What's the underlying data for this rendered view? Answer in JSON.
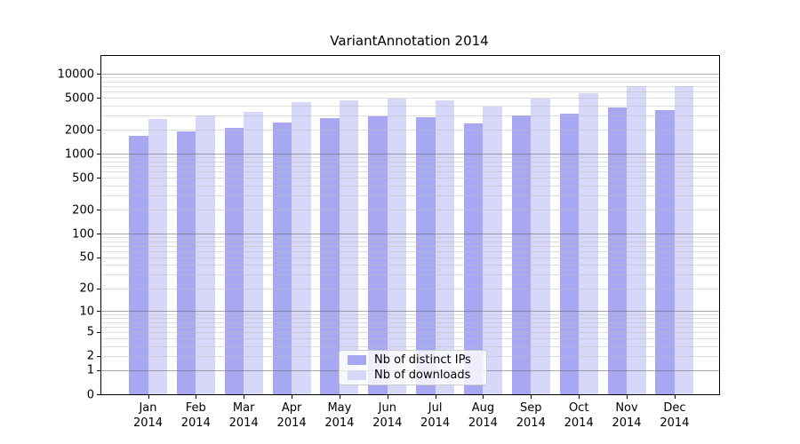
{
  "title": "VariantAnnotation 2014",
  "legend": {
    "items": [
      {
        "label": "Nb of distinct IPs",
        "color": "#a8a8f2"
      },
      {
        "label": "Nb of downloads",
        "color": "#d7d7f9"
      }
    ]
  },
  "chart_data": {
    "type": "bar",
    "title": "VariantAnnotation 2014",
    "categories": [
      "Jan 2014",
      "Feb 2014",
      "Mar 2014",
      "Apr 2014",
      "May 2014",
      "Jun 2014",
      "Jul 2014",
      "Aug 2014",
      "Sep 2014",
      "Oct 2014",
      "Nov 2014",
      "Dec 2014"
    ],
    "series": [
      {
        "name": "Nb of distinct IPs",
        "color": "#a8a8f2",
        "values": [
          1690,
          1920,
          2090,
          2480,
          2790,
          2940,
          2860,
          2380,
          3010,
          3150,
          3790,
          3540
        ]
      },
      {
        "name": "Nb of downloads",
        "color": "#d7d7f9",
        "values": [
          2740,
          3040,
          3340,
          4420,
          4660,
          4900,
          4660,
          3890,
          4900,
          5700,
          7000,
          7000
        ]
      }
    ],
    "xlabel": "",
    "ylabel": "",
    "y_scale": "log10(1+x)",
    "y_ticks": [
      0,
      1,
      2,
      5,
      10,
      20,
      50,
      100,
      200,
      500,
      1000,
      2000,
      5000,
      10000
    ],
    "ylim": [
      0,
      10000
    ],
    "grid": true,
    "grid_minor_multiples": [
      2,
      3,
      4,
      5,
      6,
      7,
      8,
      9
    ],
    "grid_major_lines": [
      1,
      10,
      100,
      1000,
      10000
    ],
    "legend_position": "bottom-center"
  }
}
